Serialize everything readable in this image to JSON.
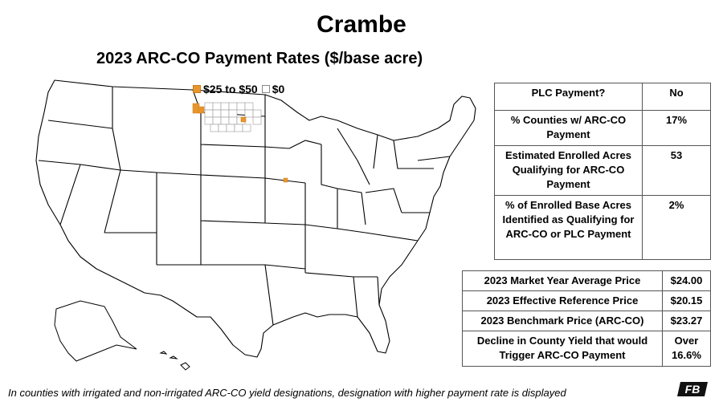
{
  "title": "Crambe",
  "subtitle": "2023 ARC-CO Payment Rates ($/base acre)",
  "legend": [
    {
      "label": "$25 to $50",
      "color": "#e8962c"
    },
    {
      "label": "$0",
      "color": "#ffffff"
    }
  ],
  "colors": {
    "payment": "#e8962c",
    "state_outline": "#000000"
  },
  "program_table": [
    {
      "label": "PLC Payment?",
      "value": "No"
    },
    {
      "label": "% Counties w/ ARC-CO Payment",
      "value": "17%"
    },
    {
      "label": "Estimated Enrolled Acres Qualifying for ARC-CO Payment",
      "value": "53"
    },
    {
      "label": "% of Enrolled Base Acres Identified as Qualifying for ARC-CO or PLC Payment",
      "value": "2%"
    }
  ],
  "price_table": [
    {
      "label": "2023 Market Year Average Price",
      "value": "$24.00"
    },
    {
      "label": "2023 Effective Reference Price",
      "value": "$20.15"
    },
    {
      "label": "2023 Benchmark Price (ARC-CO)",
      "value": "$23.27"
    },
    {
      "label": "Decline in County Yield that would Trigger ARC-CO Payment",
      "value": "Over 16.6%"
    }
  ],
  "footnote": "In counties with irrigated and non-irrigated ARC-CO yield designations, designation with higher payment rate is displayed",
  "logo_text": "FB"
}
